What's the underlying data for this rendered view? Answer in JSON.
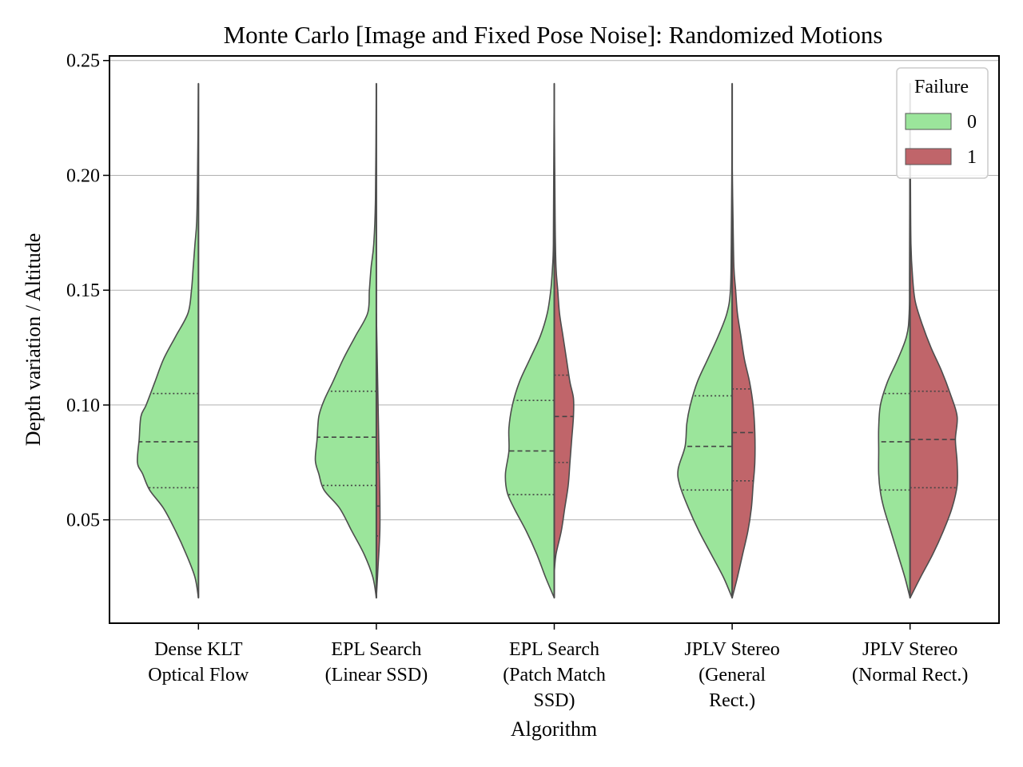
{
  "chart_data": {
    "type": "violin",
    "split": true,
    "title": "Monte Carlo [Image and Fixed Pose Noise]: Randomized Motions",
    "xlabel": "Algorithm",
    "ylabel": "Depth variation / Altitude",
    "ylim": [
      0.005,
      0.252
    ],
    "yticks": [
      "0.05",
      "0.10",
      "0.15",
      "0.20",
      "0.25"
    ],
    "ytick_values": [
      0.05,
      0.1,
      0.15,
      0.2,
      0.25
    ],
    "grid": "horizontal",
    "legend": {
      "title": "Failure",
      "placement": "top-right",
      "entries": [
        {
          "label": "0",
          "color": "#9be59b"
        },
        {
          "label": "1",
          "color": "#c0656a"
        }
      ]
    },
    "categories": [
      {
        "label_lines": [
          "Dense KLT",
          "Optical Flow"
        ]
      },
      {
        "label_lines": [
          "EPL Search",
          "(Linear SSD)"
        ]
      },
      {
        "label_lines": [
          "EPL Search",
          "(Patch Match",
          "SSD)"
        ]
      },
      {
        "label_lines": [
          "JPLV Stereo",
          "(General",
          "Rect.)"
        ]
      },
      {
        "label_lines": [
          "JPLV Stereo",
          "(Normal Rect.)"
        ]
      }
    ],
    "series": [
      {
        "name": "0",
        "color": "#9be59b",
        "side": "left",
        "violins": [
          {
            "min": 0.016,
            "max": 0.24,
            "q1": 0.064,
            "median": 0.084,
            "q3": 0.105,
            "profile": [
              [
                0.016,
                0.0
              ],
              [
                0.025,
                0.02
              ],
              [
                0.035,
                0.07
              ],
              [
                0.045,
                0.13
              ],
              [
                0.055,
                0.2
              ],
              [
                0.063,
                0.28
              ],
              [
                0.07,
                0.32
              ],
              [
                0.075,
                0.35
              ],
              [
                0.085,
                0.34
              ],
              [
                0.095,
                0.33
              ],
              [
                0.1,
                0.3
              ],
              [
                0.11,
                0.25
              ],
              [
                0.12,
                0.2
              ],
              [
                0.13,
                0.13
              ],
              [
                0.14,
                0.06
              ],
              [
                0.15,
                0.04
              ],
              [
                0.16,
                0.03
              ],
              [
                0.17,
                0.02
              ],
              [
                0.18,
                0.01
              ],
              [
                0.2,
                0.005
              ],
              [
                0.24,
                0.0
              ]
            ]
          },
          {
            "min": 0.016,
            "max": 0.24,
            "q1": 0.065,
            "median": 0.086,
            "q3": 0.106,
            "profile": [
              [
                0.016,
                0.0
              ],
              [
                0.025,
                0.02
              ],
              [
                0.035,
                0.07
              ],
              [
                0.045,
                0.14
              ],
              [
                0.055,
                0.21
              ],
              [
                0.063,
                0.3
              ],
              [
                0.07,
                0.33
              ],
              [
                0.076,
                0.35
              ],
              [
                0.085,
                0.34
              ],
              [
                0.095,
                0.33
              ],
              [
                0.102,
                0.3
              ],
              [
                0.11,
                0.25
              ],
              [
                0.12,
                0.19
              ],
              [
                0.13,
                0.12
              ],
              [
                0.14,
                0.05
              ],
              [
                0.15,
                0.04
              ],
              [
                0.16,
                0.03
              ],
              [
                0.17,
                0.015
              ],
              [
                0.19,
                0.005
              ],
              [
                0.24,
                0.0
              ]
            ]
          },
          {
            "min": 0.016,
            "max": 0.24,
            "q1": 0.061,
            "median": 0.08,
            "q3": 0.102,
            "profile": [
              [
                0.016,
                0.0
              ],
              [
                0.025,
                0.05
              ],
              [
                0.035,
                0.1
              ],
              [
                0.045,
                0.16
              ],
              [
                0.055,
                0.23
              ],
              [
                0.062,
                0.27
              ],
              [
                0.07,
                0.28
              ],
              [
                0.08,
                0.26
              ],
              [
                0.09,
                0.26
              ],
              [
                0.1,
                0.24
              ],
              [
                0.11,
                0.2
              ],
              [
                0.12,
                0.14
              ],
              [
                0.13,
                0.08
              ],
              [
                0.14,
                0.04
              ],
              [
                0.15,
                0.02
              ],
              [
                0.16,
                0.01
              ],
              [
                0.17,
                0.005
              ],
              [
                0.2,
                0.003
              ],
              [
                0.24,
                0.0
              ]
            ]
          },
          {
            "min": 0.016,
            "max": 0.24,
            "q1": 0.063,
            "median": 0.082,
            "q3": 0.104,
            "profile": [
              [
                0.016,
                0.0
              ],
              [
                0.025,
                0.05
              ],
              [
                0.035,
                0.12
              ],
              [
                0.045,
                0.19
              ],
              [
                0.055,
                0.25
              ],
              [
                0.065,
                0.3
              ],
              [
                0.072,
                0.31
              ],
              [
                0.082,
                0.27
              ],
              [
                0.092,
                0.26
              ],
              [
                0.1,
                0.24
              ],
              [
                0.11,
                0.2
              ],
              [
                0.12,
                0.14
              ],
              [
                0.13,
                0.08
              ],
              [
                0.14,
                0.03
              ],
              [
                0.15,
                0.01
              ],
              [
                0.17,
                0.005
              ],
              [
                0.2,
                0.002
              ],
              [
                0.24,
                0.0
              ]
            ]
          },
          {
            "min": 0.016,
            "max": 0.24,
            "q1": 0.063,
            "median": 0.084,
            "q3": 0.105,
            "profile": [
              [
                0.016,
                0.0
              ],
              [
                0.025,
                0.03
              ],
              [
                0.035,
                0.07
              ],
              [
                0.045,
                0.11
              ],
              [
                0.055,
                0.15
              ],
              [
                0.062,
                0.17
              ],
              [
                0.07,
                0.18
              ],
              [
                0.08,
                0.18
              ],
              [
                0.09,
                0.18
              ],
              [
                0.1,
                0.17
              ],
              [
                0.11,
                0.13
              ],
              [
                0.12,
                0.07
              ],
              [
                0.13,
                0.02
              ],
              [
                0.14,
                0.005
              ],
              [
                0.16,
                0.003
              ],
              [
                0.24,
                0.0
              ]
            ]
          }
        ]
      },
      {
        "name": "1",
        "color": "#c0656a",
        "side": "right",
        "violins": [
          null,
          {
            "min": 0.016,
            "max": 0.14,
            "q1": 0.043,
            "median": 0.056,
            "q3": 0.075,
            "profile": [
              [
                0.016,
                0.0
              ],
              [
                0.03,
                0.01
              ],
              [
                0.045,
                0.02
              ],
              [
                0.06,
                0.02
              ],
              [
                0.08,
                0.015
              ],
              [
                0.1,
                0.01
              ],
              [
                0.12,
                0.005
              ],
              [
                0.14,
                0.0
              ]
            ]
          },
          {
            "min": 0.027,
            "max": 0.235,
            "q1": 0.075,
            "median": 0.095,
            "q3": 0.113,
            "profile": [
              [
                0.027,
                0.0
              ],
              [
                0.035,
                0.01
              ],
              [
                0.045,
                0.04
              ],
              [
                0.055,
                0.06
              ],
              [
                0.065,
                0.08
              ],
              [
                0.075,
                0.09
              ],
              [
                0.085,
                0.1
              ],
              [
                0.095,
                0.11
              ],
              [
                0.103,
                0.11
              ],
              [
                0.11,
                0.09
              ],
              [
                0.12,
                0.07
              ],
              [
                0.13,
                0.05
              ],
              [
                0.14,
                0.03
              ],
              [
                0.15,
                0.02
              ],
              [
                0.16,
                0.01
              ],
              [
                0.18,
                0.005
              ],
              [
                0.235,
                0.0
              ]
            ]
          },
          {
            "min": 0.016,
            "max": 0.205,
            "q1": 0.067,
            "median": 0.088,
            "q3": 0.107,
            "profile": [
              [
                0.016,
                0.0
              ],
              [
                0.025,
                0.03
              ],
              [
                0.035,
                0.06
              ],
              [
                0.045,
                0.09
              ],
              [
                0.055,
                0.11
              ],
              [
                0.065,
                0.12
              ],
              [
                0.075,
                0.13
              ],
              [
                0.088,
                0.13
              ],
              [
                0.1,
                0.12
              ],
              [
                0.11,
                0.1
              ],
              [
                0.12,
                0.07
              ],
              [
                0.13,
                0.05
              ],
              [
                0.14,
                0.03
              ],
              [
                0.15,
                0.02
              ],
              [
                0.16,
                0.01
              ],
              [
                0.18,
                0.005
              ],
              [
                0.205,
                0.0
              ]
            ]
          },
          {
            "min": 0.016,
            "max": 0.22,
            "q1": 0.064,
            "median": 0.085,
            "q3": 0.106,
            "profile": [
              [
                0.016,
                0.0
              ],
              [
                0.025,
                0.06
              ],
              [
                0.035,
                0.13
              ],
              [
                0.045,
                0.19
              ],
              [
                0.055,
                0.24
              ],
              [
                0.065,
                0.27
              ],
              [
                0.075,
                0.27
              ],
              [
                0.085,
                0.26
              ],
              [
                0.095,
                0.27
              ],
              [
                0.105,
                0.23
              ],
              [
                0.115,
                0.18
              ],
              [
                0.125,
                0.12
              ],
              [
                0.135,
                0.07
              ],
              [
                0.145,
                0.03
              ],
              [
                0.155,
                0.015
              ],
              [
                0.17,
                0.005
              ],
              [
                0.2,
                0.002
              ],
              [
                0.22,
                0.0
              ]
            ]
          }
        ]
      }
    ]
  }
}
